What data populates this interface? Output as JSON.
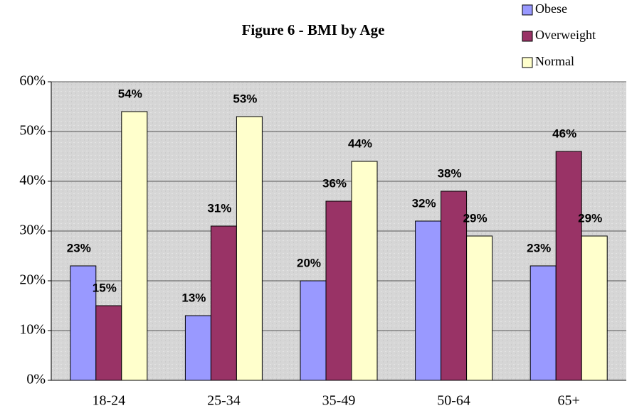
{
  "chart_data": {
    "type": "bar",
    "title": "Figure 6 - BMI by Age",
    "categories": [
      "18-24",
      "25-34",
      "35-49",
      "50-64",
      "65+"
    ],
    "series": [
      {
        "name": "Obese",
        "color": "#9999ff",
        "values": [
          23,
          13,
          20,
          32,
          23
        ],
        "value_labels": [
          "23%",
          "13%",
          "20%",
          "32%",
          "23%"
        ]
      },
      {
        "name": "Overweight",
        "color": "#993366",
        "values": [
          15,
          31,
          36,
          38,
          46
        ],
        "value_labels": [
          "15%",
          "31%",
          "36%",
          "38%",
          "46%"
        ]
      },
      {
        "name": "Normal",
        "color": "#ffffcc",
        "values": [
          54,
          53,
          44,
          29,
          29
        ],
        "value_labels": [
          "54%",
          "53%",
          "44%",
          "29%",
          "29%"
        ]
      }
    ],
    "ylim": [
      0,
      60
    ],
    "yticks": [
      {
        "value": 0,
        "label": "0%"
      },
      {
        "value": 10,
        "label": "10%"
      },
      {
        "value": 20,
        "label": "20%"
      },
      {
        "value": 30,
        "label": "30%"
      },
      {
        "value": 40,
        "label": "40%"
      },
      {
        "value": 50,
        "label": "50%"
      },
      {
        "value": 60,
        "label": "60%"
      }
    ],
    "grid": true,
    "legend": "top-right"
  }
}
